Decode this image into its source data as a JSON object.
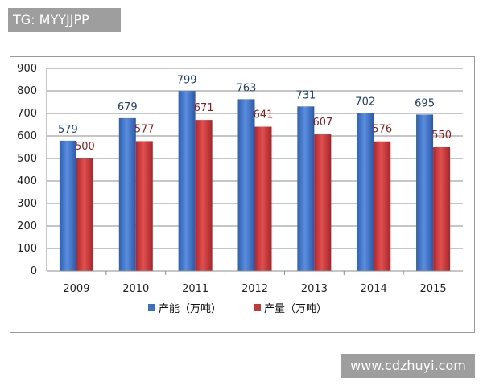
{
  "watermarks": {
    "top": "TG: MYYJJPP",
    "bottom": "www.cdzhuyi.com"
  },
  "chart_data": {
    "type": "bar",
    "title": "",
    "xlabel": "",
    "ylabel": "",
    "categories": [
      "2009",
      "2010",
      "2011",
      "2012",
      "2013",
      "2014",
      "2015"
    ],
    "ylim": [
      0,
      900
    ],
    "yticks": [
      0,
      100,
      200,
      300,
      400,
      500,
      600,
      700,
      800,
      900
    ],
    "grid": true,
    "legend_position": "bottom",
    "series": [
      {
        "name": "产能（万吨）",
        "color": "#3b6fc4",
        "values": [
          579,
          679,
          799,
          763,
          731,
          702,
          695
        ]
      },
      {
        "name": "产量（万吨）",
        "color": "#c0393b",
        "values": [
          500,
          577,
          671,
          641,
          607,
          576,
          550
        ]
      }
    ]
  }
}
